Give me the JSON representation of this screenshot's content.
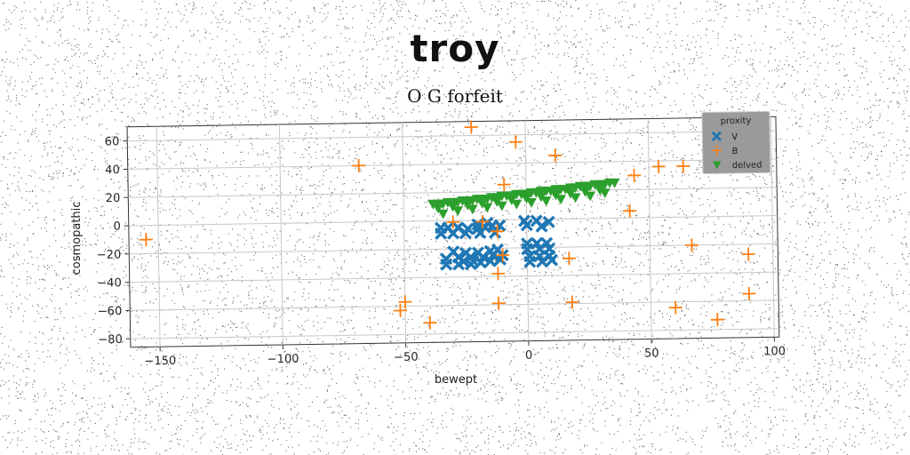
{
  "chart_data": {
    "type": "scatter",
    "title": "troy",
    "subtitle": "O G forfeit",
    "xlabel": "bewept",
    "ylabel": "cosmopathic",
    "xlim": [
      -162,
      102
    ],
    "ylim": [
      -86,
      70
    ],
    "x_ticks": [
      -150,
      -100,
      -50,
      0,
      50,
      100
    ],
    "x_tick_labels": [
      "−150",
      "−100",
      "−50",
      "0",
      "50",
      "100"
    ],
    "y_ticks": [
      -80,
      -60,
      -40,
      -20,
      0,
      20,
      40,
      60
    ],
    "y_tick_labels": [
      "−80",
      "−60",
      "−40",
      "−20",
      "0",
      "20",
      "40",
      "60"
    ],
    "grid": true,
    "legend": {
      "title": "proxity",
      "position": "top-right",
      "entries": [
        {
          "label": "V",
          "marker": "x-filled",
          "color": "#1f77b4"
        },
        {
          "label": "B",
          "marker": "plus",
          "color": "#ff7f0e"
        },
        {
          "label": "delved",
          "marker": "triangle-down",
          "color": "#2ca02c"
        }
      ]
    },
    "series": [
      {
        "name": "V",
        "marker": "x-filled",
        "color": "#1f77b4",
        "points": [
          [
            -35,
            -5
          ],
          [
            -32,
            -5
          ],
          [
            -28,
            -5
          ],
          [
            -24,
            -6
          ],
          [
            -20,
            -6
          ],
          [
            -17,
            -5
          ],
          [
            -14,
            -4
          ],
          [
            -11,
            -4
          ],
          [
            -35,
            -9
          ],
          [
            -30,
            -9
          ],
          [
            -25,
            -9
          ],
          [
            -19,
            -9
          ],
          [
            -13,
            -9
          ],
          [
            -33,
            -27
          ],
          [
            -28,
            -26
          ],
          [
            -23,
            -26
          ],
          [
            -18,
            -26
          ],
          [
            -14,
            -25
          ],
          [
            -10,
            -25
          ],
          [
            -33,
            -31
          ],
          [
            -28,
            -31
          ],
          [
            -23,
            -31
          ],
          [
            -19,
            -30
          ],
          [
            -15,
            -29
          ],
          [
            -11,
            -28
          ],
          [
            -30,
            -22
          ],
          [
            -25,
            -23
          ],
          [
            -20,
            -23
          ],
          [
            -15,
            -22
          ],
          [
            -12,
            -21
          ],
          [
            -20,
            -3
          ],
          [
            -16,
            -2
          ],
          [
            -22,
            -29
          ],
          [
            -26,
            -29
          ],
          [
            -1,
            -1
          ],
          [
            4,
            -1
          ],
          [
            9,
            -2
          ],
          [
            0,
            -4
          ],
          [
            6,
            -5
          ],
          [
            0,
            -17
          ],
          [
            4,
            -17
          ],
          [
            8,
            -17
          ],
          [
            0,
            -21
          ],
          [
            5,
            -21
          ],
          [
            9,
            -21
          ],
          [
            1,
            -26
          ],
          [
            5,
            -26
          ],
          [
            9,
            -26
          ],
          [
            1,
            -30
          ],
          [
            6,
            -30
          ],
          [
            10,
            -29
          ]
        ]
      },
      {
        "name": "B",
        "marker": "plus",
        "color": "#ff7f0e",
        "points": [
          [
            -155,
            -10
          ],
          [
            -68,
            40
          ],
          [
            -52,
            -63
          ],
          [
            -50,
            -57
          ],
          [
            -40,
            -72
          ],
          [
            -30,
            -1
          ],
          [
            -22,
            66
          ],
          [
            -18,
            -1
          ],
          [
            -12,
            -59
          ],
          [
            -12,
            -38
          ],
          [
            -12,
            -8
          ],
          [
            -10,
            -25
          ],
          [
            -9,
            25
          ],
          [
            -4,
            55
          ],
          [
            12,
            45
          ],
          [
            17,
            -28
          ],
          [
            18,
            -59
          ],
          [
            42,
            5
          ],
          [
            44,
            30
          ],
          [
            54,
            36
          ],
          [
            64,
            36
          ],
          [
            67,
            -20
          ],
          [
            60,
            -64
          ],
          [
            77,
            -73
          ],
          [
            90,
            -27
          ],
          [
            90,
            -55
          ]
        ]
      },
      {
        "name": "delved",
        "marker": "triangle-down",
        "color": "#2ca02c",
        "points": [
          [
            -38,
            12
          ],
          [
            -36,
            12
          ],
          [
            -34,
            12
          ],
          [
            -32,
            13
          ],
          [
            -30,
            13
          ],
          [
            -28,
            13
          ],
          [
            -26,
            14
          ],
          [
            -24,
            14
          ],
          [
            -22,
            14
          ],
          [
            -20,
            15
          ],
          [
            -18,
            15
          ],
          [
            -16,
            15
          ],
          [
            -14,
            16
          ],
          [
            -12,
            16
          ],
          [
            -10,
            17
          ],
          [
            -8,
            17
          ],
          [
            -6,
            17
          ],
          [
            -4,
            18
          ],
          [
            -2,
            18
          ],
          [
            0,
            18
          ],
          [
            2,
            19
          ],
          [
            4,
            19
          ],
          [
            6,
            20
          ],
          [
            8,
            20
          ],
          [
            10,
            20
          ],
          [
            12,
            21
          ],
          [
            14,
            21
          ],
          [
            16,
            21
          ],
          [
            18,
            22
          ],
          [
            20,
            22
          ],
          [
            22,
            23
          ],
          [
            24,
            23
          ],
          [
            26,
            23
          ],
          [
            28,
            24
          ],
          [
            30,
            24
          ],
          [
            32,
            24
          ],
          [
            34,
            25
          ],
          [
            36,
            25
          ],
          [
            -36,
            9
          ],
          [
            -30,
            10
          ],
          [
            -24,
            11
          ],
          [
            -18,
            12
          ],
          [
            -12,
            13
          ],
          [
            -6,
            14
          ],
          [
            0,
            15
          ],
          [
            6,
            16
          ],
          [
            12,
            17
          ],
          [
            18,
            18
          ],
          [
            24,
            19
          ],
          [
            30,
            20
          ],
          [
            -34,
            5
          ],
          [
            -28,
            7
          ],
          [
            -22,
            8
          ],
          [
            -16,
            9
          ],
          [
            -10,
            10
          ],
          [
            -4,
            11
          ],
          [
            2,
            12
          ],
          [
            8,
            13
          ],
          [
            14,
            14
          ],
          [
            20,
            15
          ],
          [
            26,
            16
          ],
          [
            32,
            18
          ]
        ]
      }
    ]
  }
}
